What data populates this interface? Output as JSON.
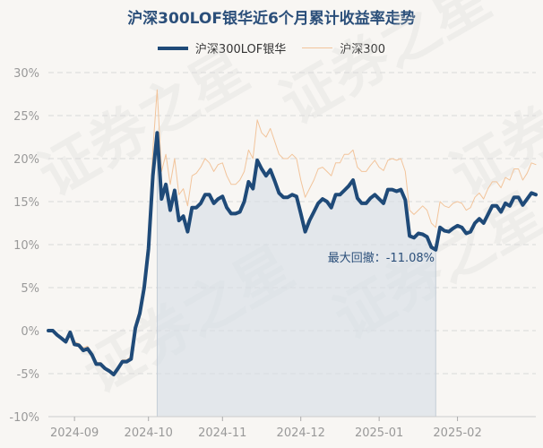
{
  "chart_data": {
    "type": "line",
    "title": "沪深300LOF银华近6个月累计收益率走势",
    "watermark": "证券之星",
    "ylim": [
      -10,
      30
    ],
    "yticks": [
      -10,
      -5,
      0,
      5,
      10,
      15,
      20,
      25,
      30
    ],
    "ytick_labels": [
      "-10%",
      "-5%",
      "0%",
      "5%",
      "10%",
      "15%",
      "20%",
      "25%",
      "30%"
    ],
    "xlim": [
      0,
      112
    ],
    "xticks": [
      6,
      23,
      40,
      58,
      76,
      94
    ],
    "xtick_labels": [
      "2024-09",
      "2024-10",
      "2024-11",
      "2024-12",
      "2025-01",
      "2025-02"
    ],
    "series": [
      {
        "name": "沪深300LOF银华",
        "color": "#1f4a78",
        "width": 4,
        "values": [
          0,
          0,
          -0.5,
          -0.9,
          -1.3,
          -0.2,
          -1.6,
          -1.7,
          -2.3,
          -2.1,
          -2.8,
          -3.9,
          -3.9,
          -4.4,
          -4.7,
          -5.1,
          -4.4,
          -3.6,
          -3.6,
          -3.3,
          0.3,
          2.0,
          5.0,
          9.5,
          18.0,
          23.0,
          15.3,
          17.0,
          14.0,
          16.3,
          12.8,
          13.3,
          11.5,
          14.3,
          14.3,
          14.8,
          15.8,
          15.8,
          14.8,
          15.3,
          15.6,
          14.3,
          13.6,
          13.6,
          13.8,
          15.0,
          17.3,
          16.5,
          19.8,
          18.8,
          18.0,
          18.7,
          17.4,
          16.0,
          15.5,
          15.5,
          15.8,
          15.6,
          13.6,
          11.5,
          12.8,
          13.8,
          14.8,
          15.3,
          15.0,
          14.3,
          15.8,
          15.8,
          16.3,
          16.8,
          17.5,
          15.4,
          14.8,
          14.8,
          15.4,
          15.8,
          15.3,
          14.8,
          16.4,
          16.4,
          16.2,
          16.4,
          15.2,
          11.0,
          10.8,
          11.3,
          11.2,
          10.9,
          9.7,
          9.4,
          12.0,
          11.6,
          11.5,
          11.9,
          12.2,
          12.0,
          11.3,
          11.5,
          12.5,
          13.0,
          12.5,
          13.5,
          14.5,
          14.5,
          13.8,
          14.8,
          14.5,
          15.5,
          15.5,
          14.6,
          15.3,
          16.0,
          15.8
        ]
      },
      {
        "name": "沪深300",
        "color": "#f2c49b",
        "width": 1,
        "values": [
          0,
          0,
          -0.3,
          -0.8,
          -1.2,
          -0.3,
          -1.3,
          -1.5,
          -2.0,
          -1.8,
          -2.6,
          -3.7,
          -3.7,
          -4.3,
          -4.5,
          -4.9,
          -4.2,
          -3.4,
          -3.4,
          -3.0,
          0.8,
          2.6,
          6.0,
          11.0,
          21.0,
          28.0,
          18.5,
          20.5,
          17.0,
          20.0,
          15.8,
          16.5,
          14.5,
          18.0,
          18.3,
          19.0,
          20.0,
          19.5,
          18.5,
          19.3,
          19.5,
          18.0,
          17.0,
          17.0,
          17.5,
          18.5,
          21.0,
          20.0,
          24.5,
          23.0,
          22.5,
          23.5,
          22.0,
          20.5,
          20.0,
          20.0,
          20.5,
          20.0,
          17.5,
          15.5,
          16.5,
          17.5,
          18.8,
          19.0,
          18.5,
          18.0,
          19.5,
          19.5,
          20.5,
          20.5,
          21.0,
          19.0,
          18.5,
          18.5,
          19.2,
          19.8,
          19.0,
          18.6,
          19.8,
          20.0,
          19.8,
          20.0,
          18.5,
          14.0,
          13.5,
          14.0,
          14.5,
          14.0,
          12.5,
          12.0,
          15.0,
          14.5,
          14.3,
          14.8,
          15.0,
          14.8,
          14.0,
          14.3,
          15.5,
          16.0,
          15.3,
          16.5,
          17.3,
          17.3,
          16.6,
          17.8,
          17.5,
          18.8,
          18.8,
          17.5,
          18.3,
          19.5,
          19.3
        ]
      }
    ],
    "shaded_range": {
      "from": 25,
      "to": 89
    },
    "annotation": {
      "text": "最大回撤：-11.08%"
    }
  }
}
